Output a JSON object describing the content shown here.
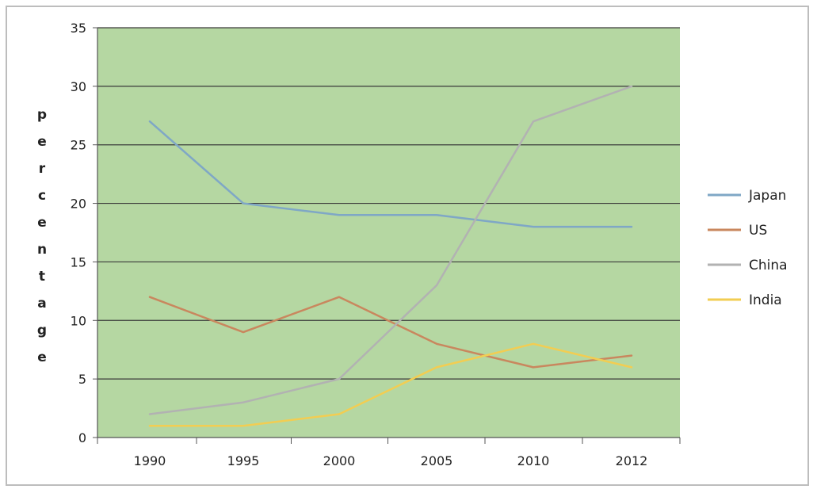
{
  "chart_data": {
    "type": "line",
    "x": [
      "1990",
      "1995",
      "2000",
      "2005",
      "2010",
      "2012"
    ],
    "ylabel": "percentage",
    "ylim": [
      0,
      35
    ],
    "yticks": [
      0,
      5,
      10,
      15,
      20,
      25,
      30,
      35
    ],
    "grid": true,
    "legend_position": "right",
    "plot_background": "#b5d7a2",
    "series": [
      {
        "name": "Japan",
        "color": "#7fa7c6",
        "values": [
          27,
          20,
          19,
          19,
          18,
          18
        ]
      },
      {
        "name": "US",
        "color": "#c9875e",
        "values": [
          12,
          9,
          12,
          8,
          6,
          7
        ]
      },
      {
        "name": "China",
        "color": "#b2b2b2",
        "values": [
          2,
          3,
          5,
          13,
          27,
          30
        ]
      },
      {
        "name": "India",
        "color": "#f2cd52",
        "values": [
          1,
          1,
          2,
          6,
          8,
          6
        ]
      }
    ]
  }
}
